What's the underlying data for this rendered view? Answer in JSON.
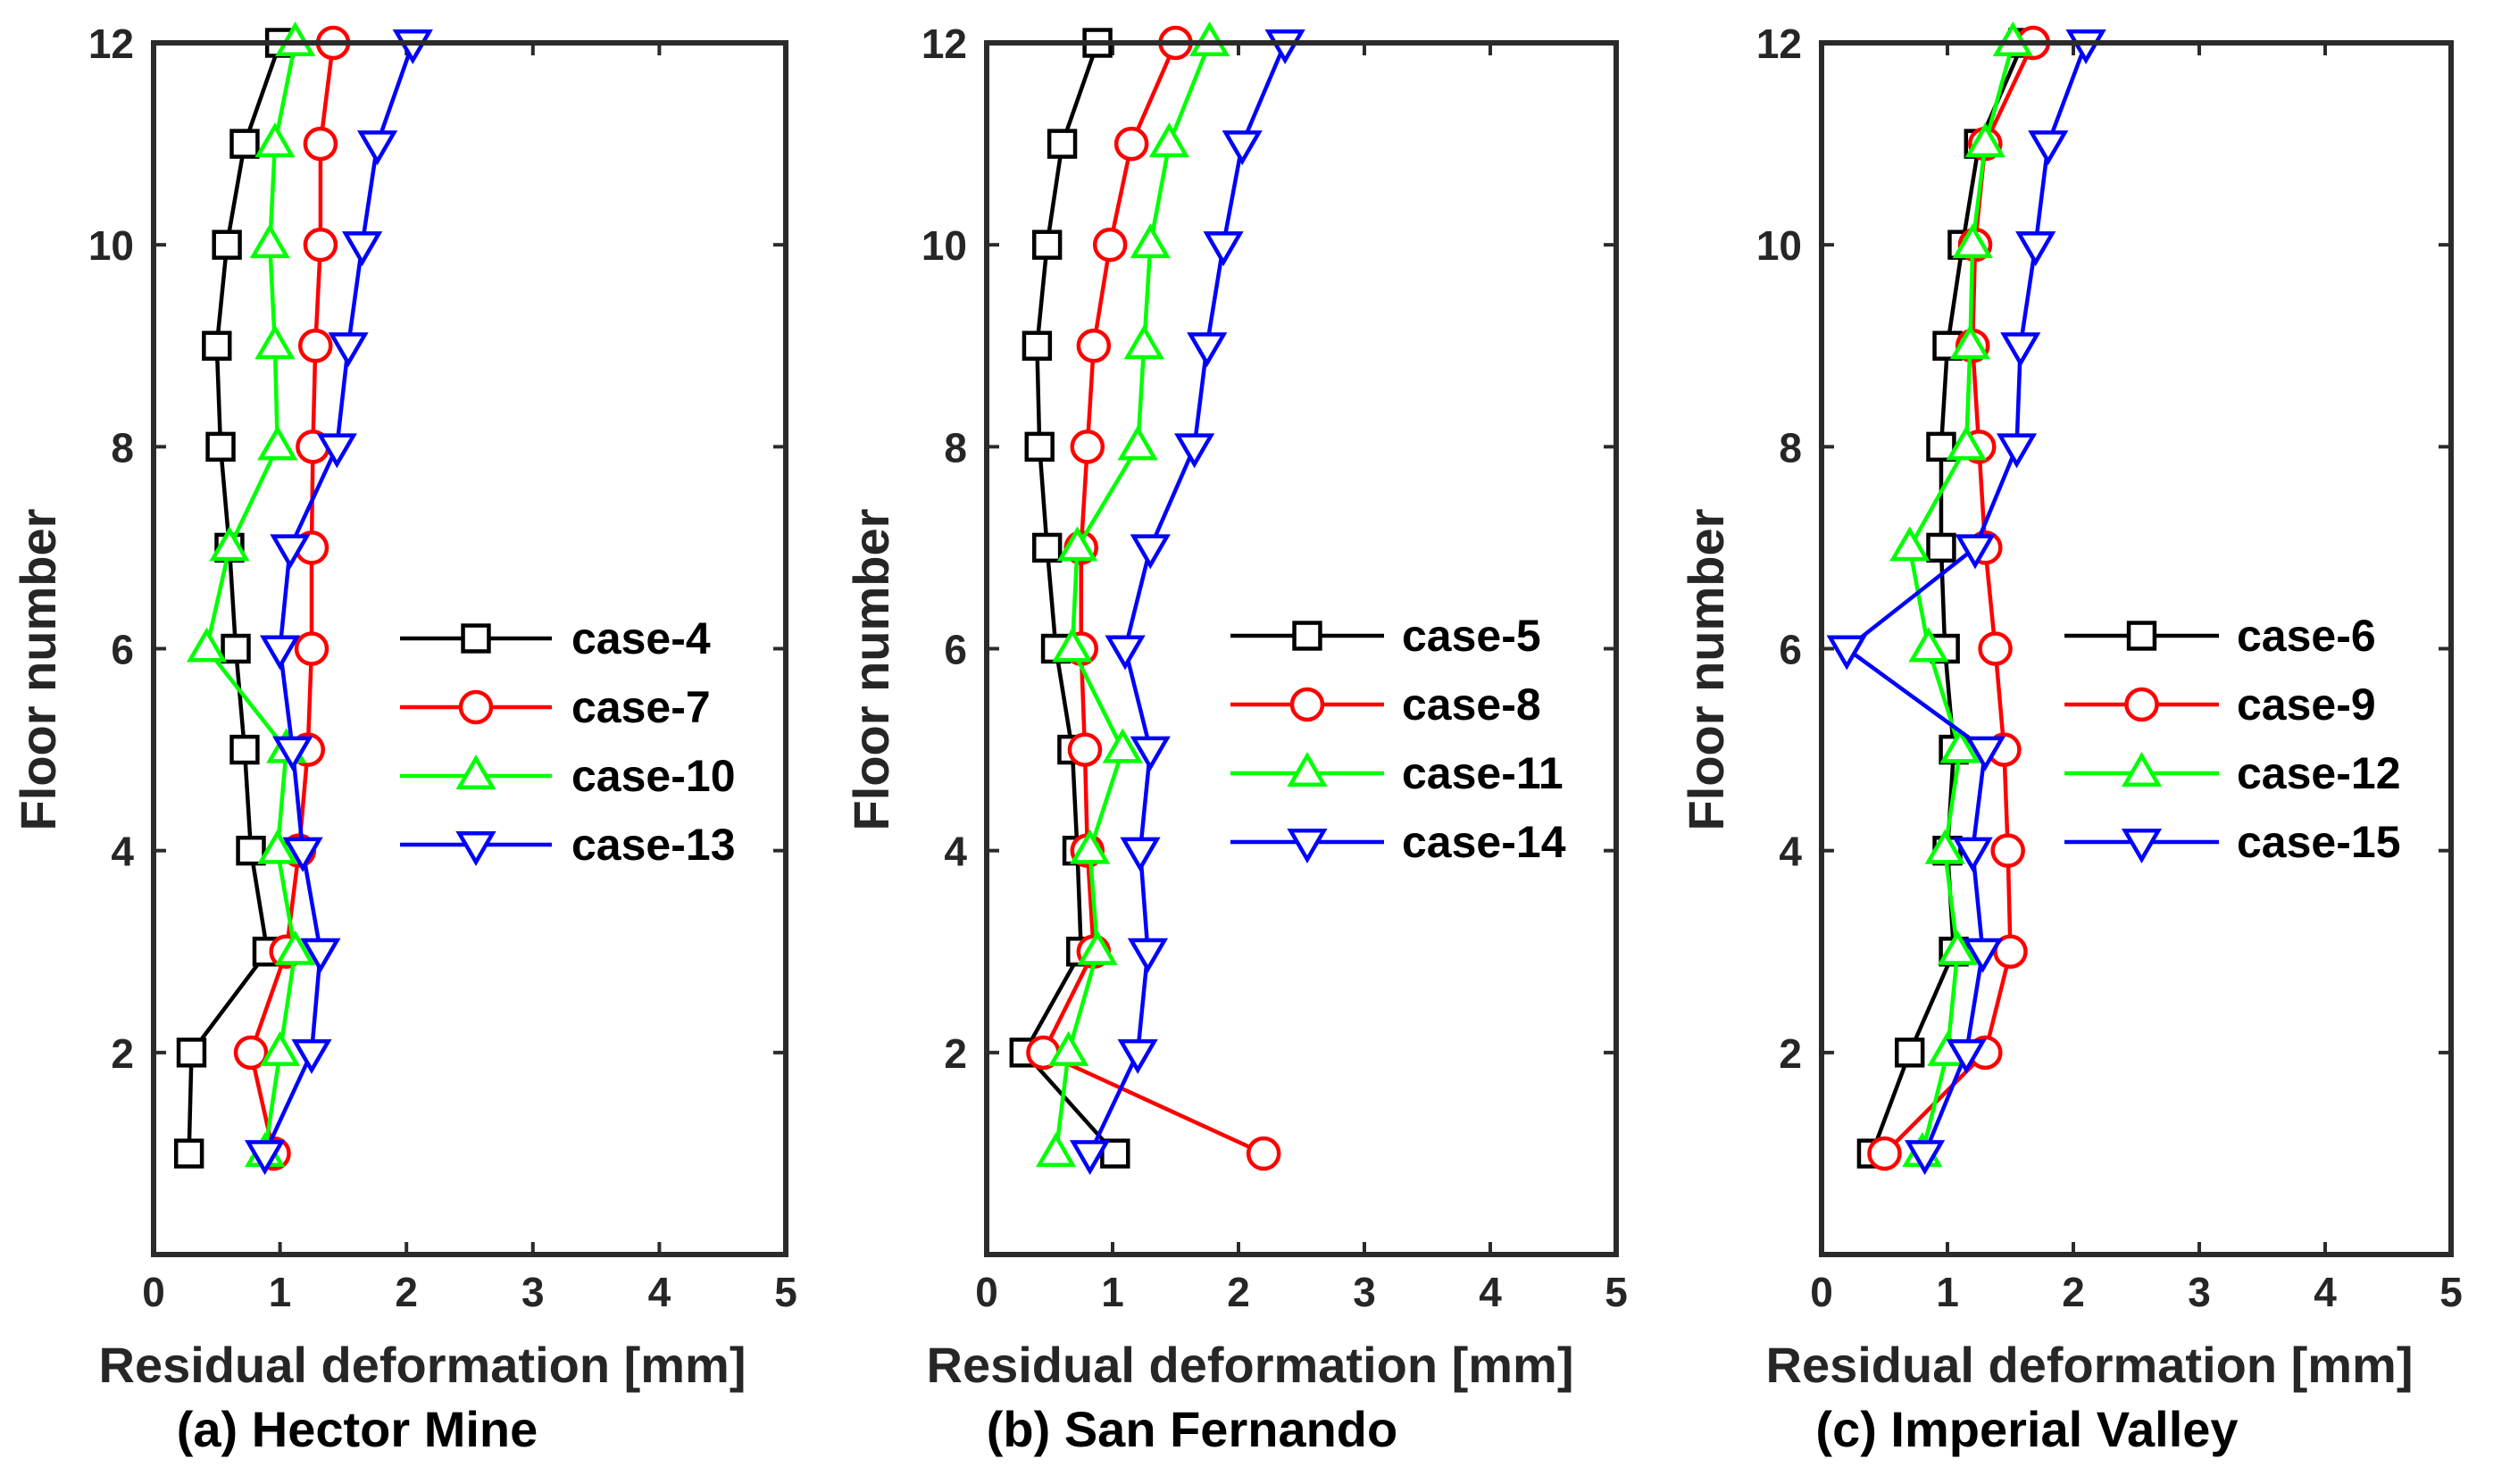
{
  "chart_data": [
    {
      "type": "line",
      "caption": "(a) Hector Mine",
      "xlabel": "Residual deformation [mm]",
      "ylabel": "Floor number",
      "xlim": [
        0,
        5
      ],
      "ylim": [
        0,
        12
      ],
      "xticks": [
        0,
        1,
        2,
        3,
        4,
        5
      ],
      "yticks": [
        2,
        4,
        6,
        8,
        10,
        12
      ],
      "legend_position": "right-middle",
      "series": [
        {
          "name": "case-4",
          "color": "#000000",
          "marker": "square",
          "x": [
            0.28,
            0.3,
            0.9,
            0.77,
            0.72,
            0.65,
            0.6,
            0.53,
            0.5,
            0.58,
            0.72,
            1.0
          ],
          "y": [
            1,
            2,
            3,
            4,
            5,
            6,
            7,
            8,
            9,
            10,
            11,
            12
          ]
        },
        {
          "name": "case-7",
          "color": "#ff0000",
          "marker": "circle",
          "x": [
            0.95,
            0.77,
            1.05,
            1.15,
            1.22,
            1.25,
            1.25,
            1.26,
            1.28,
            1.32,
            1.32,
            1.42
          ],
          "y": [
            1,
            2,
            3,
            4,
            5,
            6,
            7,
            8,
            9,
            10,
            11,
            12
          ]
        },
        {
          "name": "case-10",
          "color": "#00ff00",
          "marker": "triangle-up",
          "x": [
            0.88,
            1.0,
            1.12,
            0.98,
            1.05,
            0.42,
            0.6,
            0.98,
            0.96,
            0.92,
            0.96,
            1.12
          ],
          "y": [
            1,
            2,
            3,
            4,
            5,
            6,
            7,
            8,
            9,
            10,
            11,
            12
          ]
        },
        {
          "name": "case-13",
          "color": "#0000ff",
          "marker": "triangle-down",
          "x": [
            0.88,
            1.25,
            1.32,
            1.18,
            1.1,
            1.0,
            1.08,
            1.45,
            1.54,
            1.65,
            1.77,
            2.05
          ],
          "y": [
            1,
            2,
            3,
            4,
            5,
            6,
            7,
            8,
            9,
            10,
            11,
            12
          ]
        }
      ]
    },
    {
      "type": "line",
      "caption": "(b) San Fernando",
      "xlabel": "Residual deformation [mm]",
      "ylabel": "Floor number",
      "xlim": [
        0,
        5
      ],
      "ylim": [
        0,
        12
      ],
      "xticks": [
        0,
        1,
        2,
        3,
        4,
        5
      ],
      "yticks": [
        2,
        4,
        6,
        8,
        10,
        12
      ],
      "legend_position": "right-middle",
      "series": [
        {
          "name": "case-5",
          "color": "#000000",
          "marker": "square",
          "x": [
            1.02,
            0.3,
            0.75,
            0.72,
            0.68,
            0.55,
            0.48,
            0.42,
            0.4,
            0.48,
            0.6,
            0.88
          ],
          "y": [
            1,
            2,
            3,
            4,
            5,
            6,
            7,
            8,
            9,
            10,
            11,
            12
          ]
        },
        {
          "name": "case-8",
          "color": "#ff0000",
          "marker": "circle",
          "x": [
            2.2,
            0.45,
            0.85,
            0.8,
            0.78,
            0.75,
            0.75,
            0.8,
            0.85,
            0.98,
            1.15,
            1.5
          ],
          "y": [
            1,
            2,
            3,
            4,
            5,
            6,
            7,
            8,
            9,
            10,
            11,
            12
          ]
        },
        {
          "name": "case-11",
          "color": "#00ff00",
          "marker": "triangle-up",
          "x": [
            0.55,
            0.65,
            0.88,
            0.82,
            1.08,
            0.68,
            0.72,
            1.2,
            1.25,
            1.3,
            1.45,
            1.77
          ],
          "y": [
            1,
            2,
            3,
            4,
            5,
            6,
            7,
            8,
            9,
            10,
            11,
            12
          ]
        },
        {
          "name": "case-14",
          "color": "#0000ff",
          "marker": "triangle-down",
          "x": [
            0.82,
            1.2,
            1.28,
            1.22,
            1.3,
            1.1,
            1.3,
            1.65,
            1.75,
            1.88,
            2.03,
            2.37
          ],
          "y": [
            1,
            2,
            3,
            4,
            5,
            6,
            7,
            8,
            9,
            10,
            11,
            12
          ]
        }
      ]
    },
    {
      "type": "line",
      "caption": "(c) Imperial Valley",
      "xlabel": "Residual deformation [mm]",
      "ylabel": "Floor number",
      "xlim": [
        0,
        5
      ],
      "ylim": [
        0,
        12
      ],
      "xticks": [
        0,
        1,
        2,
        3,
        4,
        5
      ],
      "yticks": [
        2,
        4,
        6,
        8,
        10,
        12
      ],
      "legend_position": "right-middle",
      "series": [
        {
          "name": "case-6",
          "color": "#000000",
          "marker": "square",
          "x": [
            0.4,
            0.7,
            1.05,
            1.0,
            1.05,
            0.98,
            0.95,
            0.95,
            1.0,
            1.12,
            1.25,
            1.6
          ],
          "y": [
            1,
            2,
            3,
            4,
            5,
            6,
            7,
            8,
            9,
            10,
            11,
            12
          ]
        },
        {
          "name": "case-9",
          "color": "#ff0000",
          "marker": "circle",
          "x": [
            0.5,
            1.3,
            1.5,
            1.48,
            1.45,
            1.38,
            1.3,
            1.25,
            1.2,
            1.22,
            1.3,
            1.68
          ],
          "y": [
            1,
            2,
            3,
            4,
            5,
            6,
            7,
            8,
            9,
            10,
            11,
            12
          ]
        },
        {
          "name": "case-12",
          "color": "#00ff00",
          "marker": "triangle-up",
          "x": [
            0.8,
            1.0,
            1.08,
            0.98,
            1.1,
            0.85,
            0.7,
            1.15,
            1.18,
            1.2,
            1.3,
            1.52
          ],
          "y": [
            1,
            2,
            3,
            4,
            5,
            6,
            7,
            8,
            9,
            10,
            11,
            12
          ]
        },
        {
          "name": "case-15",
          "color": "#0000ff",
          "marker": "triangle-down",
          "x": [
            0.82,
            1.15,
            1.28,
            1.2,
            1.3,
            0.2,
            1.22,
            1.55,
            1.58,
            1.7,
            1.8,
            2.1
          ],
          "y": [
            1,
            2,
            3,
            4,
            5,
            6,
            7,
            8,
            9,
            10,
            11,
            12
          ]
        }
      ]
    }
  ]
}
